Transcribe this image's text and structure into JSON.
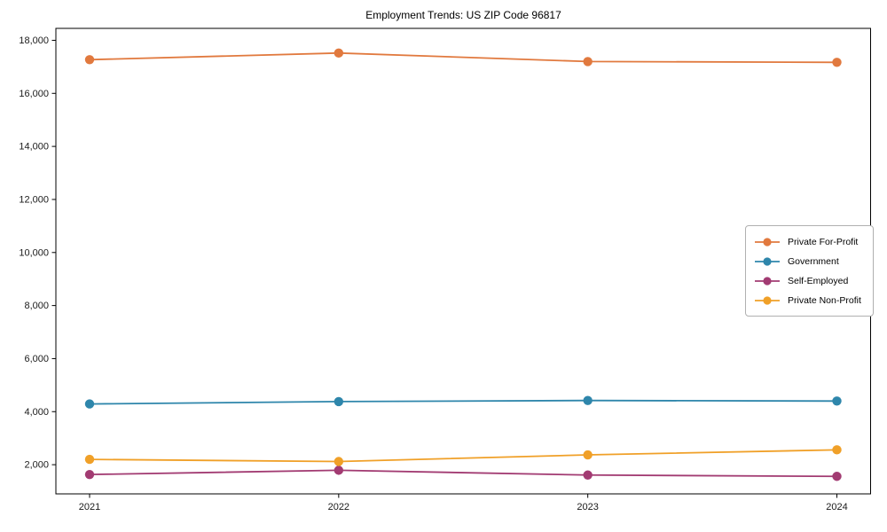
{
  "title": "Employment Trends: US ZIP Code 96817",
  "chart_data": {
    "type": "line",
    "title": "Employment Trends: US ZIP Code 96817",
    "xlabel": "",
    "ylabel": "",
    "categories": [
      "2021",
      "2022",
      "2023",
      "2024"
    ],
    "series": [
      {
        "name": "Private For-Profit",
        "color": "#E1793E",
        "values": [
          17270,
          17520,
          17200,
          17170
        ]
      },
      {
        "name": "Government",
        "color": "#2E86AB",
        "values": [
          4290,
          4380,
          4420,
          4400
        ]
      },
      {
        "name": "Self-Employed",
        "color": "#A23B72",
        "values": [
          1630,
          1790,
          1610,
          1560
        ]
      },
      {
        "name": "Private Non-Profit",
        "color": "#F0A028",
        "values": [
          2200,
          2120,
          2370,
          2560
        ]
      }
    ],
    "y_ticks": [
      2000,
      4000,
      6000,
      8000,
      10000,
      12000,
      14000,
      16000,
      18000
    ],
    "y_tick_labels": [
      "2,000",
      "4,000",
      "6,000",
      "8,000",
      "10,000",
      "12,000",
      "14,000",
      "16,000",
      "18,000"
    ],
    "ylim": [
      900,
      18450
    ],
    "grid": false,
    "legend_position": "center right",
    "marker": "circle",
    "axis_color": "#000000"
  }
}
